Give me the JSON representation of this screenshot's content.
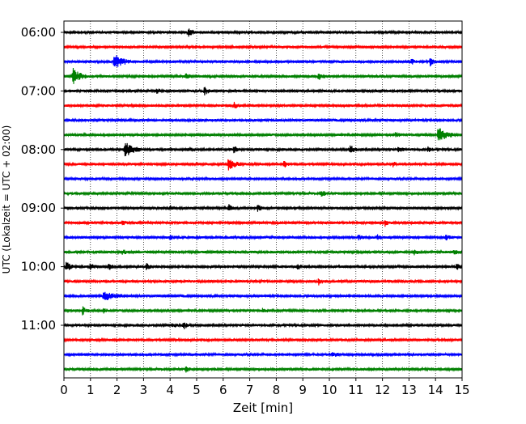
{
  "chart_data": {
    "type": "line",
    "subtype": "helicorder-seismogram",
    "title": "",
    "xlabel": "Zeit  [min]",
    "ylabel": "UTC (Lokalzeit = UTC + 02:00)",
    "xlim": [
      0,
      15
    ],
    "x_ticks": [
      "0",
      "1",
      "2",
      "3",
      "4",
      "5",
      "6",
      "7",
      "8",
      "9",
      "10",
      "11",
      "12",
      "13",
      "14",
      "15"
    ],
    "x_grid": "dotted vertical lines at each minute",
    "y_tick_labels": [
      "06:00",
      "07:00",
      "08:00",
      "09:00",
      "10:00",
      "11:00"
    ],
    "trace_interval_minutes": 15,
    "trace_colors": [
      "#000000",
      "#ff0000",
      "#0000ff",
      "#008000"
    ],
    "traces": [
      {
        "start": "06:00",
        "events": [
          {
            "t": 4.7,
            "amp": 0.6
          }
        ]
      },
      {
        "start": "06:15",
        "events": []
      },
      {
        "start": "06:30",
        "events": [
          {
            "t": 1.9,
            "amp": 1.0,
            "dur": 0.6
          },
          {
            "t": 13.1,
            "amp": 0.3
          },
          {
            "t": 13.8,
            "amp": 0.5
          }
        ]
      },
      {
        "start": "06:45",
        "events": [
          {
            "t": 0.35,
            "amp": 1.0,
            "dur": 0.5
          },
          {
            "t": 4.6,
            "amp": 0.3
          },
          {
            "t": 9.6,
            "amp": 0.5
          }
        ]
      },
      {
        "start": "07:00",
        "events": [
          {
            "t": 3.5,
            "amp": 0.3
          },
          {
            "t": 5.3,
            "amp": 0.5
          }
        ]
      },
      {
        "start": "07:15",
        "events": [
          {
            "t": 6.4,
            "amp": 0.4
          }
        ]
      },
      {
        "start": "07:30",
        "events": []
      },
      {
        "start": "07:45",
        "events": [
          {
            "t": 12.5,
            "amp": 0.3
          },
          {
            "t": 14.1,
            "amp": 1.0,
            "dur": 0.6
          }
        ]
      },
      {
        "start": "08:00",
        "events": [
          {
            "t": 2.3,
            "amp": 1.0,
            "dur": 0.6
          },
          {
            "t": 4.7,
            "amp": 0.3
          },
          {
            "t": 6.4,
            "amp": 0.4
          },
          {
            "t": 10.8,
            "amp": 0.6
          },
          {
            "t": 12.6,
            "amp": 0.4
          },
          {
            "t": 13.7,
            "amp": 0.3
          }
        ]
      },
      {
        "start": "08:15",
        "events": [
          {
            "t": 6.2,
            "amp": 0.8,
            "dur": 0.5
          },
          {
            "t": 8.3,
            "amp": 0.4
          },
          {
            "t": 12.4,
            "amp": 0.3
          }
        ]
      },
      {
        "start": "08:30",
        "events": []
      },
      {
        "start": "08:45",
        "events": [
          {
            "t": 9.7,
            "amp": 0.4
          }
        ]
      },
      {
        "start": "09:00",
        "events": [
          {
            "t": 6.2,
            "amp": 0.6
          },
          {
            "t": 7.3,
            "amp": 0.4
          },
          {
            "t": 4.0,
            "amp": 0.3
          }
        ]
      },
      {
        "start": "09:15",
        "events": [
          {
            "t": 2.2,
            "amp": 0.3
          },
          {
            "t": 12.1,
            "amp": 0.4
          }
        ]
      },
      {
        "start": "09:30",
        "events": [
          {
            "t": 4.0,
            "amp": 0.3
          },
          {
            "t": 11.1,
            "amp": 0.3
          },
          {
            "t": 11.8,
            "amp": 0.3
          },
          {
            "t": 14.4,
            "amp": 0.3
          }
        ]
      },
      {
        "start": "09:45",
        "events": [
          {
            "t": 2.2,
            "amp": 0.3
          },
          {
            "t": 13.2,
            "amp": 0.4
          },
          {
            "t": 14.7,
            "amp": 0.3
          }
        ]
      },
      {
        "start": "10:00",
        "events": [
          {
            "t": 0.1,
            "amp": 0.8
          },
          {
            "t": 1.0,
            "amp": 0.4
          },
          {
            "t": 1.7,
            "amp": 0.4
          },
          {
            "t": 3.1,
            "amp": 0.4
          },
          {
            "t": 8.8,
            "amp": 0.3
          },
          {
            "t": 14.8,
            "amp": 0.4
          }
        ]
      },
      {
        "start": "10:15",
        "events": [
          {
            "t": 9.6,
            "amp": 0.4
          }
        ]
      },
      {
        "start": "10:30",
        "events": [
          {
            "t": 1.5,
            "amp": 0.6,
            "dur": 0.8
          }
        ]
      },
      {
        "start": "10:45",
        "events": [
          {
            "t": 0.7,
            "amp": 0.5
          },
          {
            "t": 1.5,
            "amp": 0.3
          },
          {
            "t": 7.5,
            "amp": 0.3
          }
        ]
      },
      {
        "start": "11:00",
        "events": [
          {
            "t": 4.5,
            "amp": 0.5
          },
          {
            "t": 4.1,
            "amp": 0.3
          }
        ]
      },
      {
        "start": "11:15",
        "events": []
      },
      {
        "start": "11:30",
        "events": [
          {
            "t": 10.1,
            "amp": 0.4
          }
        ]
      },
      {
        "start": "11:45",
        "events": [
          {
            "t": 4.6,
            "amp": 0.3
          }
        ]
      }
    ]
  }
}
